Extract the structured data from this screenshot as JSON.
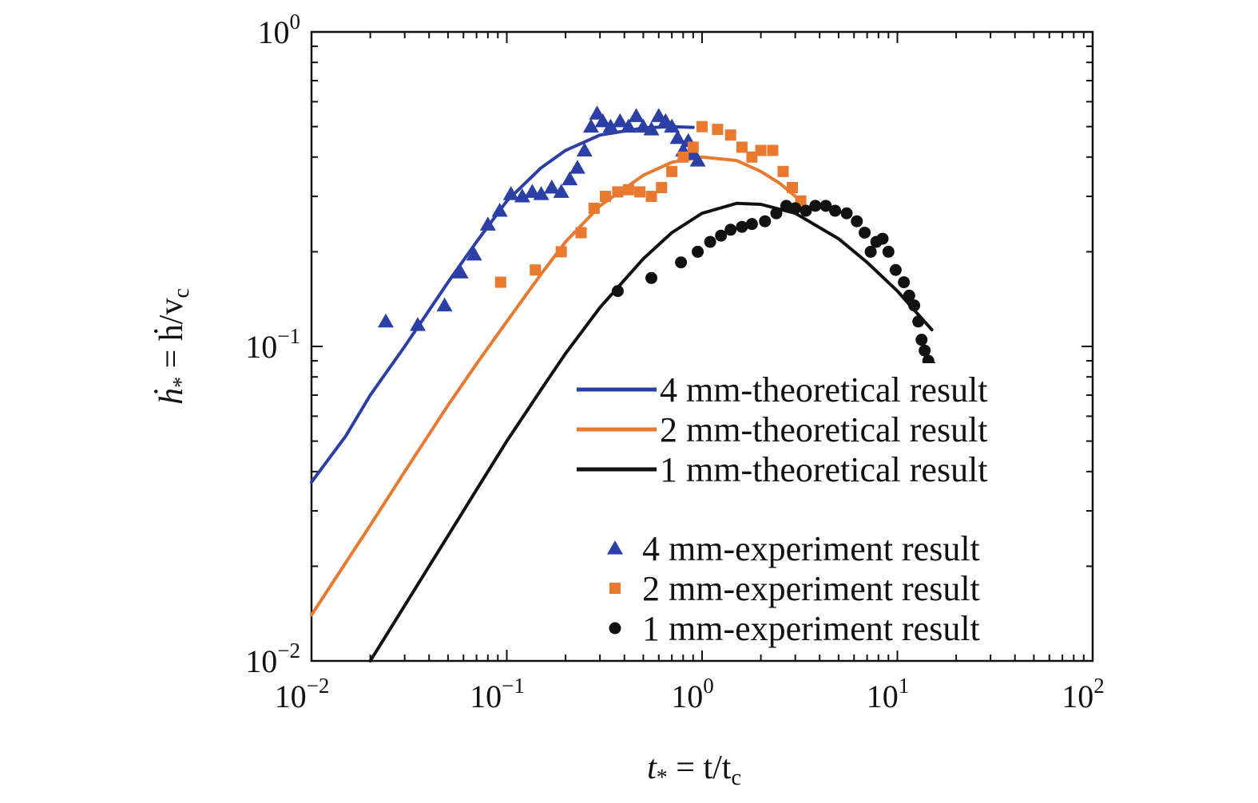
{
  "chart_data": {
    "type": "scatter",
    "title": "",
    "x_scale": "log",
    "y_scale": "log",
    "xlim": [
      0.01,
      100
    ],
    "ylim": [
      0.01,
      1
    ],
    "grid": false,
    "legend_position": "bottom-right",
    "x_ticks": [
      {
        "base": "10",
        "exp": "−2",
        "value": 0.01
      },
      {
        "base": "10",
        "exp": "−1",
        "value": 0.1
      },
      {
        "base": "10",
        "exp": "0",
        "value": 1
      },
      {
        "base": "10",
        "exp": "1",
        "value": 10
      },
      {
        "base": "10",
        "exp": "2",
        "value": 100
      }
    ],
    "y_ticks": [
      {
        "base": "10",
        "exp": "−2",
        "value": 0.01
      },
      {
        "base": "10",
        "exp": "−1",
        "value": 0.1
      },
      {
        "base": "10",
        "exp": "0",
        "value": 1
      }
    ],
    "xlabel": {
      "var": "t",
      "sub": "*",
      "eq": " = t/t",
      "sub2": "c"
    },
    "ylabel": {
      "var": "ḣ",
      "sub": "*",
      "eq": " = ḣ/v",
      "sub2": "c"
    },
    "theory_series": [
      {
        "name": "4 mm-theoretical result",
        "color": "#2b3fa6",
        "points": [
          [
            0.01,
            0.037
          ],
          [
            0.015,
            0.052
          ],
          [
            0.02,
            0.07
          ],
          [
            0.03,
            0.1
          ],
          [
            0.05,
            0.16
          ],
          [
            0.07,
            0.215
          ],
          [
            0.1,
            0.29
          ],
          [
            0.15,
            0.37
          ],
          [
            0.2,
            0.42
          ],
          [
            0.3,
            0.47
          ],
          [
            0.5,
            0.495
          ],
          [
            0.7,
            0.5
          ],
          [
            0.9,
            0.497
          ]
        ]
      },
      {
        "name": "2 mm-theoretical result",
        "color": "#e8792f",
        "points": [
          [
            0.01,
            0.014
          ],
          [
            0.02,
            0.027
          ],
          [
            0.03,
            0.04
          ],
          [
            0.05,
            0.065
          ],
          [
            0.07,
            0.088
          ],
          [
            0.1,
            0.12
          ],
          [
            0.15,
            0.17
          ],
          [
            0.2,
            0.215
          ],
          [
            0.3,
            0.28
          ],
          [
            0.5,
            0.35
          ],
          [
            0.7,
            0.385
          ],
          [
            1.0,
            0.4
          ],
          [
            1.5,
            0.39
          ],
          [
            2.0,
            0.36
          ],
          [
            2.5,
            0.33
          ],
          [
            3.0,
            0.3
          ]
        ]
      },
      {
        "name": "1 mm-theoretical result",
        "color": "#111111",
        "points": [
          [
            0.02,
            0.01
          ],
          [
            0.03,
            0.015
          ],
          [
            0.05,
            0.025
          ],
          [
            0.07,
            0.035
          ],
          [
            0.1,
            0.05
          ],
          [
            0.15,
            0.073
          ],
          [
            0.2,
            0.095
          ],
          [
            0.3,
            0.133
          ],
          [
            0.5,
            0.19
          ],
          [
            0.7,
            0.23
          ],
          [
            1.0,
            0.265
          ],
          [
            1.5,
            0.285
          ],
          [
            2.0,
            0.283
          ],
          [
            3.0,
            0.265
          ],
          [
            5.0,
            0.22
          ],
          [
            7.0,
            0.185
          ],
          [
            10.0,
            0.15
          ],
          [
            12.0,
            0.132
          ],
          [
            15.0,
            0.113
          ]
        ]
      }
    ],
    "experiment_series": [
      {
        "name": "4 mm-experiment result",
        "color": "#2b3fa6",
        "marker": "triangle",
        "points": [
          [
            0.024,
            0.12
          ],
          [
            0.035,
            0.117
          ],
          [
            0.048,
            0.135
          ],
          [
            0.058,
            0.172
          ],
          [
            0.068,
            0.196
          ],
          [
            0.08,
            0.244
          ],
          [
            0.092,
            0.27
          ],
          [
            0.105,
            0.305
          ],
          [
            0.12,
            0.3
          ],
          [
            0.135,
            0.31
          ],
          [
            0.15,
            0.305
          ],
          [
            0.17,
            0.32
          ],
          [
            0.19,
            0.31
          ],
          [
            0.21,
            0.34
          ],
          [
            0.23,
            0.37
          ],
          [
            0.25,
            0.42
          ],
          [
            0.27,
            0.5
          ],
          [
            0.29,
            0.55
          ],
          [
            0.31,
            0.52
          ],
          [
            0.34,
            0.5
          ],
          [
            0.38,
            0.52
          ],
          [
            0.42,
            0.5
          ],
          [
            0.46,
            0.54
          ],
          [
            0.5,
            0.5
          ],
          [
            0.55,
            0.49
          ],
          [
            0.6,
            0.54
          ],
          [
            0.65,
            0.52
          ],
          [
            0.7,
            0.5
          ],
          [
            0.75,
            0.46
          ],
          [
            0.8,
            0.42
          ],
          [
            0.85,
            0.45
          ],
          [
            0.9,
            0.41
          ],
          [
            0.95,
            0.39
          ]
        ]
      },
      {
        "name": "2 mm-experiment result",
        "color": "#e8792f",
        "marker": "square",
        "points": [
          [
            0.093,
            0.16
          ],
          [
            0.14,
            0.175
          ],
          [
            0.19,
            0.2
          ],
          [
            0.24,
            0.23
          ],
          [
            0.28,
            0.275
          ],
          [
            0.32,
            0.3
          ],
          [
            0.37,
            0.31
          ],
          [
            0.42,
            0.315
          ],
          [
            0.48,
            0.31
          ],
          [
            0.55,
            0.3
          ],
          [
            0.62,
            0.32
          ],
          [
            0.7,
            0.36
          ],
          [
            0.8,
            0.4
          ],
          [
            0.9,
            0.43
          ],
          [
            1.0,
            0.5
          ],
          [
            1.2,
            0.49
          ],
          [
            1.4,
            0.47
          ],
          [
            1.6,
            0.43
          ],
          [
            1.8,
            0.4
          ],
          [
            2.0,
            0.42
          ],
          [
            2.3,
            0.42
          ],
          [
            2.6,
            0.36
          ],
          [
            2.9,
            0.32
          ],
          [
            3.2,
            0.29
          ]
        ]
      },
      {
        "name": "1 mm-experiment result",
        "color": "#111111",
        "marker": "circle",
        "points": [
          [
            0.37,
            0.15
          ],
          [
            0.55,
            0.165
          ],
          [
            0.78,
            0.185
          ],
          [
            0.95,
            0.2
          ],
          [
            1.1,
            0.215
          ],
          [
            1.25,
            0.225
          ],
          [
            1.4,
            0.235
          ],
          [
            1.6,
            0.24
          ],
          [
            1.8,
            0.245
          ],
          [
            2.1,
            0.25
          ],
          [
            2.4,
            0.265
          ],
          [
            2.7,
            0.28
          ],
          [
            3.0,
            0.275
          ],
          [
            3.4,
            0.27
          ],
          [
            3.8,
            0.28
          ],
          [
            4.3,
            0.28
          ],
          [
            4.8,
            0.27
          ],
          [
            5.5,
            0.265
          ],
          [
            6.2,
            0.25
          ],
          [
            6.8,
            0.23
          ],
          [
            7.3,
            0.2
          ],
          [
            7.8,
            0.215
          ],
          [
            8.4,
            0.22
          ],
          [
            9.0,
            0.2
          ],
          [
            9.8,
            0.175
          ],
          [
            10.8,
            0.16
          ],
          [
            11.5,
            0.145
          ],
          [
            12.2,
            0.135
          ],
          [
            12.8,
            0.12
          ],
          [
            13.3,
            0.105
          ],
          [
            13.8,
            0.097
          ],
          [
            14.4,
            0.09
          ],
          [
            14.9,
            0.086
          ]
        ]
      }
    ]
  }
}
